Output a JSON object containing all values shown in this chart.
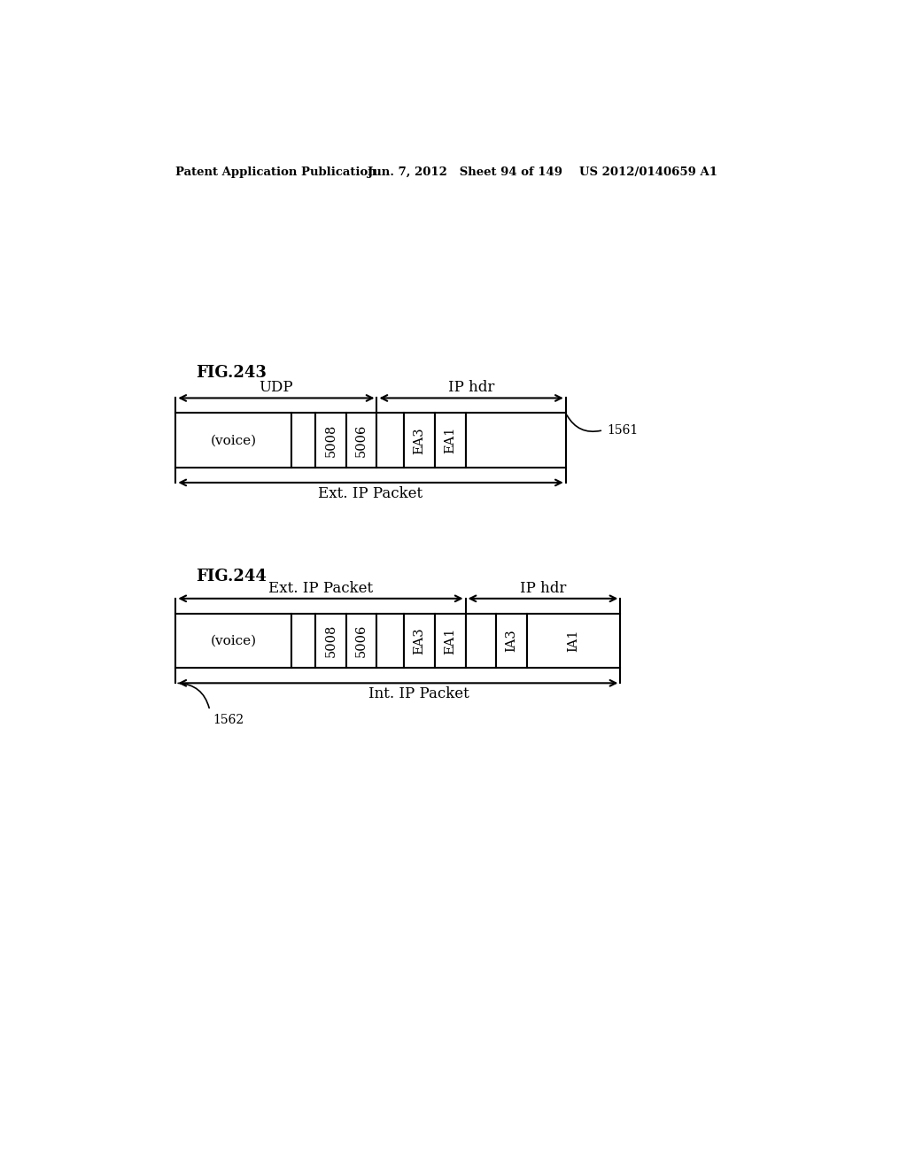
{
  "header_text_left": "Patent Application Publication",
  "header_text_mid": "Jun. 7, 2012   Sheet 94 of 149",
  "header_text_right": "US 2012/0140659 A1",
  "fig243_label": "FIG.243",
  "fig244_label": "FIG.244",
  "fig243_ref": "1561",
  "fig244_ref": "1562",
  "fig243_udp_label": "UDP",
  "fig243_iphdr_label": "IP hdr",
  "fig244_extip_label": "Ext. IP Packet",
  "fig244_iphdr_label": "IP hdr",
  "fig243_bottom_label": "Ext. IP Packet",
  "fig244_bottom_label": "Int. IP Packet",
  "background_color": "#ffffff",
  "text_color": "#000000",
  "line_color": "#000000",
  "fig243_cell_labels": [
    "(voice)",
    "",
    "5008",
    "5006",
    "",
    "EA3",
    "EA1",
    ""
  ],
  "fig244_cell_labels": [
    "(voice)",
    "",
    "5008",
    "5006",
    "",
    "EA3",
    "EA1",
    "",
    "IA3",
    "IA1"
  ]
}
